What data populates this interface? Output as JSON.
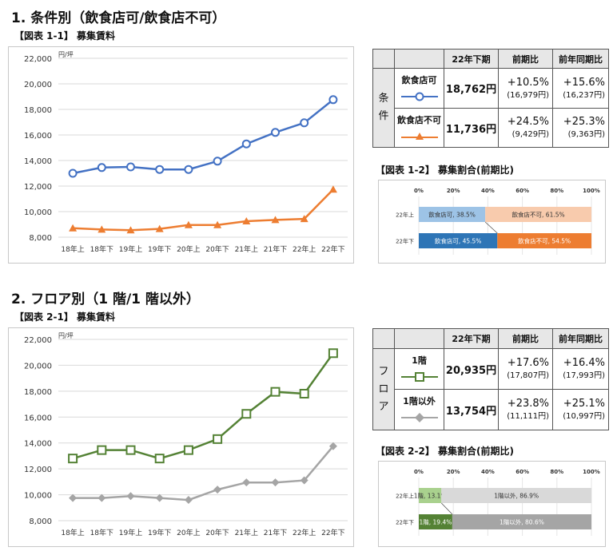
{
  "sections": [
    {
      "title": "1. 条件別（飲食店可/飲食店不可）",
      "line_fig_label": "【図表 1-1】 募集賃料",
      "bar_fig_label": "【図表 1-2】 募集割合(前期比)",
      "table": {
        "headers": [
          "22年下期",
          "前期比",
          "前年同期比"
        ],
        "side_label": [
          "条",
          "件"
        ],
        "rows": [
          {
            "name": "飲食店可",
            "value": "18,762円",
            "qoq": "+10.5%",
            "qoq_prev": "(16,979円)",
            "yoy": "+15.6%",
            "yoy_prev": "(16,237円)"
          },
          {
            "name": "飲食店不可",
            "value": "11,736円",
            "qoq": "+24.5%",
            "qoq_prev": "(9,429円)",
            "yoy": "+25.3%",
            "yoy_prev": "(9,363円)"
          }
        ]
      }
    },
    {
      "title": "2. フロア別（1 階/1 階以外）",
      "line_fig_label": "【図表 2-1】 募集賃料",
      "bar_fig_label": "【図表 2-2】 募集割合(前期比)",
      "table": {
        "headers": [
          "22年下期",
          "前期比",
          "前年同期比"
        ],
        "side_label": [
          "フ",
          "ロ",
          "ア"
        ],
        "rows": [
          {
            "name": "1階",
            "value": "20,935円",
            "qoq": "+17.6%",
            "qoq_prev": "(17,807円)",
            "yoy": "+16.4%",
            "yoy_prev": "(17,993円)"
          },
          {
            "name": "1階以外",
            "value": "13,754円",
            "qoq": "+23.8%",
            "qoq_prev": "(11,111円)",
            "yoy": "+25.1%",
            "yoy_prev": "(10,997円)"
          }
        ]
      }
    }
  ],
  "chart_data": [
    {
      "type": "line",
      "unit": "円/坪",
      "categories": [
        "18年上",
        "18年下",
        "19年上",
        "19年下",
        "20年上",
        "20年下",
        "21年上",
        "21年下",
        "22年上",
        "22年下"
      ],
      "ylim": [
        8000,
        22000
      ],
      "yticks": [
        "8,000",
        "10,000",
        "12,000",
        "14,000",
        "16,000",
        "18,000",
        "20,000",
        "22,000"
      ],
      "grid": true,
      "series": [
        {
          "name": "飲食店可",
          "color": "#4472c4",
          "marker": "circle",
          "values": [
            13000,
            13450,
            13500,
            13300,
            13300,
            13950,
            15300,
            16200,
            16950,
            18762
          ]
        },
        {
          "name": "飲食店不可",
          "color": "#ed7d31",
          "marker": "triangle",
          "values": [
            8700,
            8600,
            8550,
            8650,
            8950,
            8950,
            9250,
            9350,
            9429,
            11736
          ]
        }
      ]
    },
    {
      "type": "bar",
      "stacked": true,
      "orientation": "horizontal",
      "xticks": [
        "0%",
        "20%",
        "40%",
        "60%",
        "80%",
        "100%"
      ],
      "categories": [
        "22年上",
        "22年下"
      ],
      "series": [
        {
          "name": "飲食店可",
          "values": [
            38.5,
            45.5
          ],
          "labels": [
            "飲食店可, 38.5%",
            "飲食店可, 45.5%"
          ],
          "colors": [
            "#9dc3e6",
            "#2e75b6"
          ]
        },
        {
          "name": "飲食店不可",
          "values": [
            61.5,
            54.5
          ],
          "labels": [
            "飲食店不可, 61.5%",
            "飲食店不可, 54.5%"
          ],
          "colors": [
            "#f8cbad",
            "#ed7d31"
          ]
        }
      ]
    },
    {
      "type": "line",
      "unit": "円/坪",
      "categories": [
        "18年上",
        "18年下",
        "19年上",
        "19年下",
        "20年上",
        "20年下",
        "21年上",
        "21年下",
        "22年上",
        "22年下"
      ],
      "ylim": [
        8000,
        22000
      ],
      "yticks": [
        "8,000",
        "10,000",
        "12,000",
        "14,000",
        "16,000",
        "18,000",
        "20,000",
        "22,000"
      ],
      "grid": true,
      "series": [
        {
          "name": "1階",
          "color": "#548235",
          "marker": "square",
          "values": [
            12800,
            13450,
            13450,
            12800,
            13450,
            14300,
            16250,
            17950,
            17807,
            20935
          ]
        },
        {
          "name": "1階以外",
          "color": "#a5a5a5",
          "marker": "diamond",
          "values": [
            9750,
            9750,
            9900,
            9750,
            9600,
            10400,
            10950,
            10950,
            11111,
            13754
          ]
        }
      ]
    },
    {
      "type": "bar",
      "stacked": true,
      "orientation": "horizontal",
      "xticks": [
        "0%",
        "20%",
        "40%",
        "60%",
        "80%",
        "100%"
      ],
      "categories": [
        "22年上",
        "22年下"
      ],
      "series": [
        {
          "name": "1階",
          "values": [
            13.1,
            19.4
          ],
          "labels": [
            "1階, 13.1%",
            "1階, 19.4%"
          ],
          "colors": [
            "#a9d18e",
            "#548235"
          ]
        },
        {
          "name": "1階以外",
          "values": [
            86.9,
            80.6
          ],
          "labels": [
            "1階以外, 86.9%",
            "1階以外, 80.6%"
          ],
          "colors": [
            "#d9d9d9",
            "#a5a5a5"
          ]
        }
      ]
    }
  ]
}
